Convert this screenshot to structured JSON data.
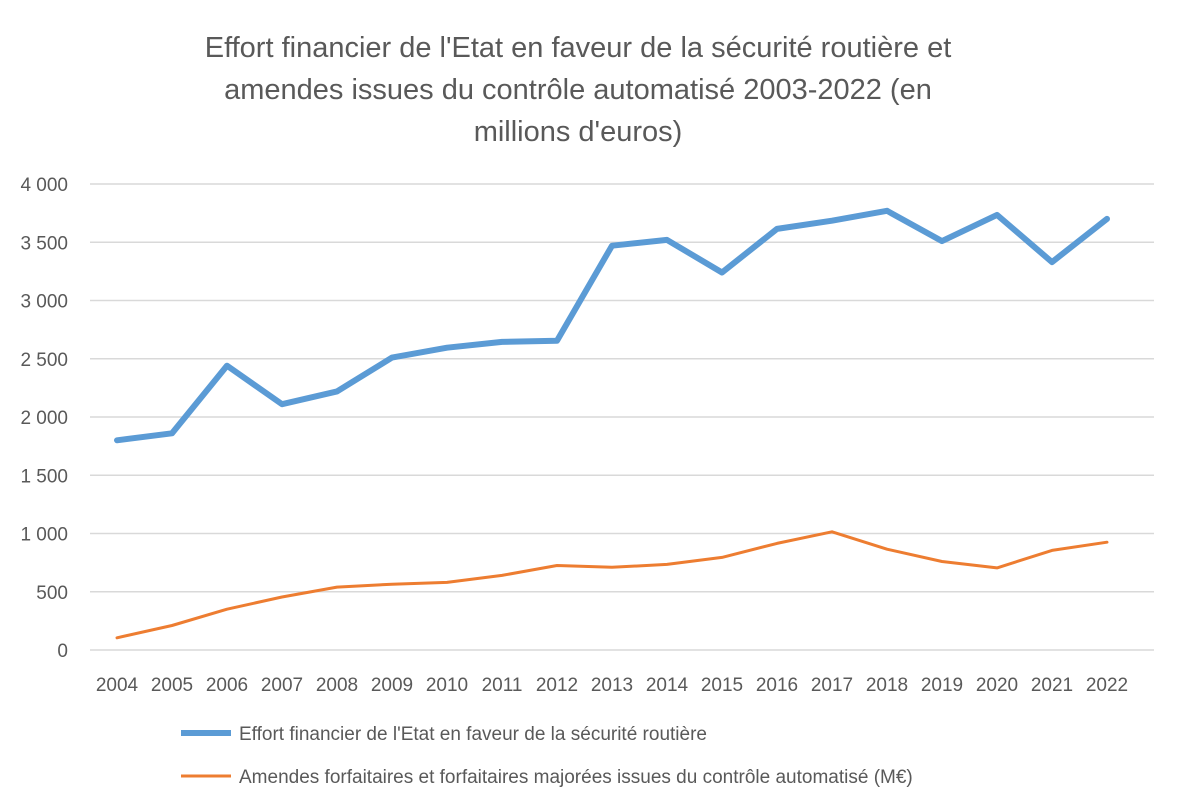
{
  "chart_data": {
    "type": "line",
    "title_lines": [
      "Effort financier de l'Etat en faveur de la sécurité routière et",
      "amendes issues du contrôle automatisé 2003-2022 (en",
      "millions d'euros)"
    ],
    "categories": [
      "2004",
      "2005",
      "2006",
      "2007",
      "2008",
      "2009",
      "2010",
      "2011",
      "2012",
      "2013",
      "2014",
      "2015",
      "2016",
      "2017",
      "2018",
      "2019",
      "2020",
      "2021",
      "2022"
    ],
    "y_ticks": [
      "0",
      "500",
      "1 000",
      "1 500",
      "2 000",
      "2 500",
      "3 000",
      "3 500",
      "4 000"
    ],
    "ylim": [
      0,
      4000
    ],
    "grid": true,
    "legend_position": "bottom",
    "series": [
      {
        "name": "Effort financier de l'Etat en faveur de la sécurité routière",
        "color": "#5b9bd5",
        "values": [
          1800,
          1860,
          2440,
          2110,
          2220,
          2510,
          2595,
          2645,
          2655,
          3470,
          3520,
          3240,
          3615,
          3685,
          3770,
          3510,
          3735,
          3330,
          3700
        ]
      },
      {
        "name": "Amendes forfaitaires et forfaitaires majorées issues du contrôle automatisé (M€)",
        "color": "#ed7d31",
        "values": [
          105,
          210,
          350,
          455,
          540,
          565,
          580,
          640,
          725,
          710,
          735,
          795,
          915,
          1015,
          865,
          760,
          705,
          855,
          925
        ]
      }
    ]
  }
}
